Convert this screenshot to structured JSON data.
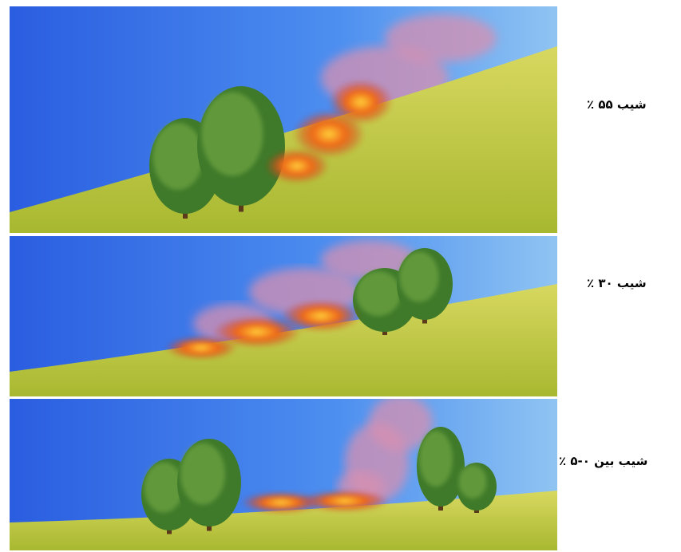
{
  "panels": [
    {
      "label": "شیب ۵۵ ٪"
    },
    {
      "label": "شیب ۳۰ ٪"
    },
    {
      "label": "شیب بین ۰-۵ ٪"
    }
  ]
}
